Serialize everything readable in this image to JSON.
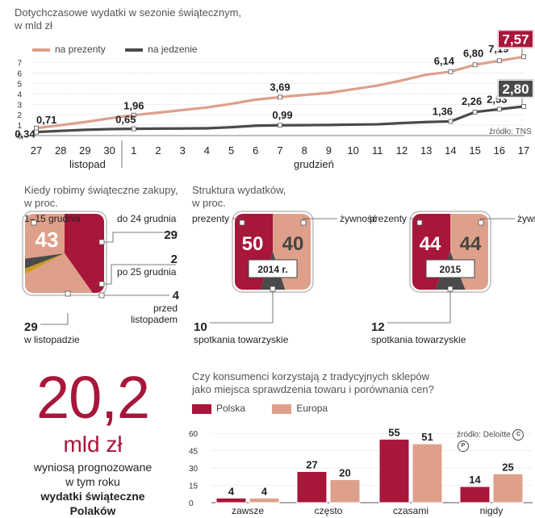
{
  "line_chart": {
    "title": "Dotychczasowe wydatki w sezonie świątecznym,",
    "subtitle": "w mld zł",
    "source": "źródło: TNS",
    "month_labels": [
      "listopad",
      "grudzień"
    ],
    "legend": [
      "na prezenty",
      "na jedzenie"
    ]
  },
  "pie1": {
    "title_line1": "Kiedy robimy świąteczne zakupy,",
    "title_line2": "w proc.",
    "big_value": "43",
    "label_1_15": "1–15 grudnia",
    "label_do24": "do 24 grudnia",
    "value_do24": "29",
    "value_po25": "2",
    "label_po25": "po 25 grudnia",
    "value_przed": "4",
    "label_przed1": "przed",
    "label_przed2": "listopadem",
    "value_listopad": "29",
    "label_listopad": "w listopadzie"
  },
  "pie2": {
    "title_line1": "Struktura wydatków,",
    "title_line2": "w proc.",
    "a": {
      "prezenty": "50",
      "zywnosc": "40",
      "year": "2014 r.",
      "spotkania": "10"
    },
    "b": {
      "prezenty": "44",
      "zywnosc": "44",
      "year": "2015",
      "spotkania": "12"
    },
    "label_prezenty": "prezenty",
    "label_zywnosc": "żywność",
    "label_spotkania": "spotkania towarzyskie"
  },
  "headline": {
    "number": "20,2",
    "unit": "mld zł",
    "line1": "wyniosą prognozowane",
    "line2": "w tym roku",
    "line3": "wydatki świąteczne",
    "line4": "Polaków"
  },
  "bar_chart": {
    "title_line1": "Czy konsumenci korzystają z tradycyjnych sklepów",
    "title_line2": "jako miejsca sprawdzenia towaru i porównania cen?",
    "source": "źródło: Deloitte"
  },
  "colors": {
    "red": "#a8163a",
    "salmon": "#dea08a",
    "dark": "#4a4a4a",
    "grid": "#cfcfcf"
  },
  "chart_data": [
    {
      "type": "line",
      "title": "Dotychczasowe wydatki w sezonie świątecznym, w mld zł",
      "x": [
        "27",
        "28",
        "29",
        "30",
        "1",
        "2",
        "3",
        "4",
        "5",
        "6",
        "7",
        "8",
        "9",
        "10",
        "11",
        "12",
        "13",
        "14",
        "15",
        "16",
        "17"
      ],
      "ylim": [
        0,
        8
      ],
      "yticks": [
        0,
        1,
        2,
        3,
        4,
        5,
        6,
        7
      ],
      "series": [
        {
          "name": "na prezenty",
          "values": [
            0.71,
            1.0,
            1.3,
            1.65,
            1.96,
            2.2,
            2.45,
            2.7,
            3.05,
            3.45,
            3.69,
            3.9,
            4.1,
            4.45,
            4.8,
            5.3,
            5.85,
            6.14,
            6.8,
            7.19,
            7.57
          ]
        },
        {
          "name": "na jedzenie",
          "values": [
            0.34,
            0.45,
            0.55,
            0.62,
            0.65,
            0.67,
            0.68,
            0.7,
            0.8,
            0.95,
            0.99,
            1.0,
            1.02,
            1.05,
            1.08,
            1.2,
            1.3,
            1.36,
            2.26,
            2.53,
            2.8
          ]
        }
      ],
      "data_labels": [
        {
          "series": "na prezenty",
          "index": 0,
          "text": "0,71"
        },
        {
          "series": "na prezenty",
          "index": 4,
          "text": "1,96"
        },
        {
          "series": "na prezenty",
          "index": 10,
          "text": "3,69"
        },
        {
          "series": "na prezenty",
          "index": 17,
          "text": "6,14"
        },
        {
          "series": "na prezenty",
          "index": 18,
          "text": "6,80"
        },
        {
          "series": "na prezenty",
          "index": 19,
          "text": "7,19"
        },
        {
          "series": "na prezenty",
          "index": 20,
          "text": "7,57",
          "boxed": true
        },
        {
          "series": "na jedzenie",
          "index": 0,
          "text": "0,34"
        },
        {
          "series": "na jedzenie",
          "index": 4,
          "text": "0,65"
        },
        {
          "series": "na jedzenie",
          "index": 10,
          "text": "0,99"
        },
        {
          "series": "na jedzenie",
          "index": 17,
          "text": "1,36"
        },
        {
          "series": "na jedzenie",
          "index": 18,
          "text": "2,26"
        },
        {
          "series": "na jedzenie",
          "index": 19,
          "text": "2,53"
        },
        {
          "series": "na jedzenie",
          "index": 20,
          "text": "2,80",
          "boxed": true
        }
      ]
    },
    {
      "type": "pie",
      "title": "Kiedy robimy świąteczne zakupy, w proc.",
      "categories": [
        "1–15 grudnia",
        "do 24 grudnia",
        "po 25 grudnia",
        "przed listopadem",
        "w listopadzie"
      ],
      "values": [
        43,
        29,
        2,
        4,
        29
      ]
    },
    {
      "type": "pie",
      "title": "Struktura wydatków 2014 r., w proc.",
      "categories": [
        "prezenty",
        "żywność",
        "spotkania towarzyskie"
      ],
      "values": [
        50,
        40,
        10
      ]
    },
    {
      "type": "pie",
      "title": "Struktura wydatków 2015, w proc.",
      "categories": [
        "prezenty",
        "żywność",
        "spotkania towarzyskie"
      ],
      "values": [
        44,
        44,
        12
      ]
    },
    {
      "type": "bar",
      "title": "Czy konsumenci korzystają z tradycyjnych sklepów jako miejsca sprawdzenia towaru i porównania cen?",
      "categories": [
        "zawsze",
        "często",
        "czasami",
        "nigdy"
      ],
      "ylim": [
        0,
        60
      ],
      "yticks": [
        0,
        15,
        30,
        45,
        60
      ],
      "series": [
        {
          "name": "Polska",
          "values": [
            4,
            27,
            55,
            14
          ]
        },
        {
          "name": "Europa",
          "values": [
            4,
            20,
            51,
            25
          ]
        }
      ]
    }
  ]
}
